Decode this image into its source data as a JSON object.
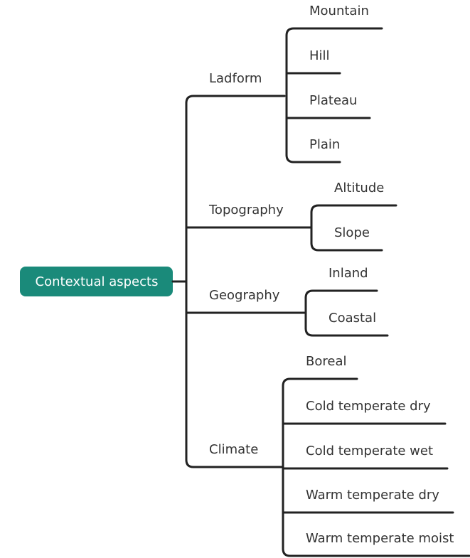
{
  "root": {
    "label": "Contextual aspects"
  },
  "branches": [
    {
      "label": "Ladform",
      "children": [
        "Mountain",
        "Hill",
        "Plateau",
        "Plain"
      ]
    },
    {
      "label": "Topography",
      "children": [
        "Altitude",
        "Slope"
      ]
    },
    {
      "label": "Geography",
      "children": [
        "Inland",
        "Coastal"
      ]
    },
    {
      "label": "Climate",
      "children": [
        "Boreal",
        "Cold temperate dry",
        "Cold temperate wet",
        "Warm temperate dry",
        "Warm temperate moist"
      ]
    }
  ]
}
